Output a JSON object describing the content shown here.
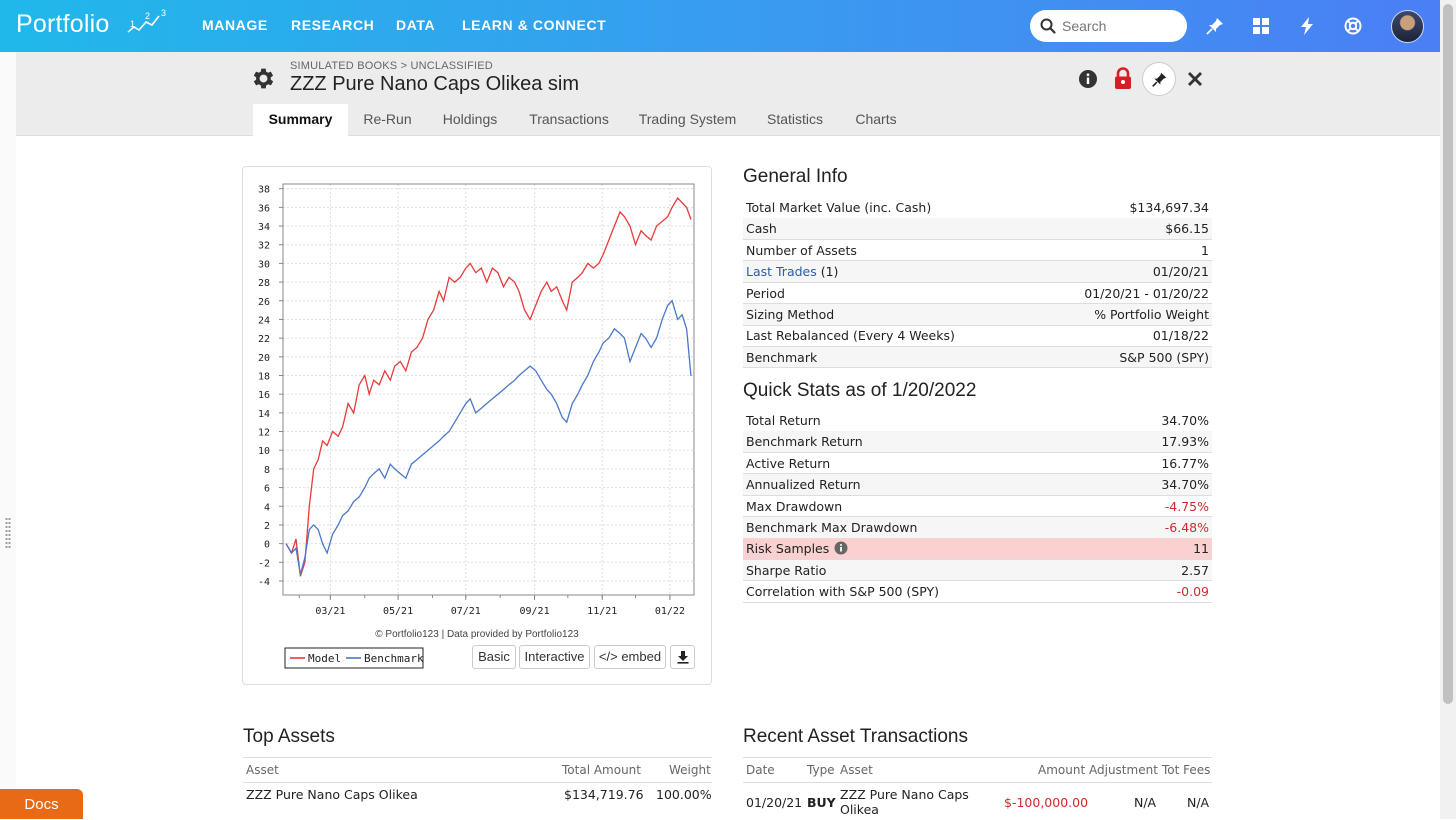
{
  "app": {
    "logo_text": "Portfolio",
    "logo_digits": [
      "1",
      "2",
      "3"
    ],
    "nav": [
      "MANAGE",
      "RESEARCH",
      "DATA",
      "LEARN & CONNECT"
    ],
    "search_placeholder": "Search",
    "brand_color": "#2aa8ee",
    "icons": [
      "search-icon",
      "pin-icon",
      "grid-icon",
      "bolt-icon",
      "help-icon",
      "avatar"
    ]
  },
  "header": {
    "breadcrumb": "SIMULATED BOOKS > UNCLASSIFIED",
    "title": "ZZZ Pure Nano Caps Olikea sim",
    "icons": [
      "gear-icon",
      "info-icon",
      "lock-icon",
      "pin-icon",
      "close-icon"
    ]
  },
  "tabs": [
    {
      "label": "Summary",
      "active": true
    },
    {
      "label": "Re-Run",
      "active": false
    },
    {
      "label": "Holdings",
      "active": false
    },
    {
      "label": "Transactions",
      "active": false
    },
    {
      "label": "Trading System",
      "active": false
    },
    {
      "label": "Statistics",
      "active": false
    },
    {
      "label": "Charts",
      "active": false
    }
  ],
  "chart": {
    "credit": "© Portfolio123 | Data provided by Portfolio123",
    "buttons": {
      "basic": "Basic",
      "interactive": "Interactive",
      "embed": "</> embed"
    },
    "legend": [
      {
        "name": "Model",
        "color": "#e83a3a"
      },
      {
        "name": "Benchmark",
        "color": "#4a78c8"
      }
    ]
  },
  "chart_data": {
    "type": "line",
    "y_ticks": [
      38,
      36,
      34,
      32,
      30,
      28,
      26,
      24,
      22,
      20,
      18,
      16,
      14,
      12,
      10,
      8,
      6,
      4,
      2,
      0,
      -2,
      -4
    ],
    "x_ticks": [
      "03/21",
      "05/21",
      "07/21",
      "09/21",
      "11/21",
      "01/22"
    ],
    "ylim": [
      -5.5,
      38.5
    ],
    "x_range": [
      "01/20/21",
      "01/20/22"
    ],
    "grid": true,
    "legend_position": "bottom-left",
    "series": [
      {
        "name": "Model",
        "color": "#e83a3a",
        "points": [
          [
            "01/20/21",
            0
          ],
          [
            "01/25/21",
            -1
          ],
          [
            "01/29/21",
            0.5
          ],
          [
            "02/02/21",
            -3.5
          ],
          [
            "02/06/21",
            -2
          ],
          [
            "02/10/21",
            4
          ],
          [
            "02/14/21",
            8
          ],
          [
            "02/18/21",
            9
          ],
          [
            "02/22/21",
            11
          ],
          [
            "02/26/21",
            10.5
          ],
          [
            "03/03/21",
            12
          ],
          [
            "03/08/21",
            11.5
          ],
          [
            "03/12/21",
            12.5
          ],
          [
            "03/17/21",
            15
          ],
          [
            "03/22/21",
            14
          ],
          [
            "03/27/21",
            17
          ],
          [
            "04/01/21",
            18
          ],
          [
            "04/05/21",
            16
          ],
          [
            "04/09/21",
            17.5
          ],
          [
            "04/14/21",
            17
          ],
          [
            "04/19/21",
            18.5
          ],
          [
            "04/24/21",
            17.5
          ],
          [
            "04/28/21",
            19
          ],
          [
            "05/03/21",
            19.5
          ],
          [
            "05/08/21",
            18.5
          ],
          [
            "05/13/21",
            20.5
          ],
          [
            "05/18/21",
            21
          ],
          [
            "05/23/21",
            22
          ],
          [
            "05/28/21",
            24
          ],
          [
            "06/02/21",
            25
          ],
          [
            "06/07/21",
            27
          ],
          [
            "06/11/21",
            26
          ],
          [
            "06/16/21",
            28.5
          ],
          [
            "06/21/21",
            28
          ],
          [
            "06/26/21",
            28.5
          ],
          [
            "07/01/21",
            29.5
          ],
          [
            "07/05/21",
            30
          ],
          [
            "07/10/21",
            29
          ],
          [
            "07/15/21",
            29.5
          ],
          [
            "07/20/21",
            28
          ],
          [
            "07/25/21",
            29.5
          ],
          [
            "07/30/21",
            29
          ],
          [
            "08/04/21",
            27.5
          ],
          [
            "08/09/21",
            28.5
          ],
          [
            "08/14/21",
            28
          ],
          [
            "08/18/21",
            27
          ],
          [
            "08/23/21",
            25
          ],
          [
            "08/28/21",
            24
          ],
          [
            "09/02/21",
            25.5
          ],
          [
            "09/07/21",
            27
          ],
          [
            "09/12/21",
            28
          ],
          [
            "09/16/21",
            27
          ],
          [
            "09/21/21",
            27.5
          ],
          [
            "09/26/21",
            26
          ],
          [
            "09/30/21",
            25
          ],
          [
            "10/05/21",
            28
          ],
          [
            "10/10/21",
            28.5
          ],
          [
            "10/14/21",
            29
          ],
          [
            "10/19/21",
            30
          ],
          [
            "10/24/21",
            29.5
          ],
          [
            "10/29/21",
            30
          ],
          [
            "11/02/21",
            31
          ],
          [
            "11/07/21",
            32.5
          ],
          [
            "11/12/21",
            34
          ],
          [
            "11/17/21",
            35.5
          ],
          [
            "11/21/21",
            35
          ],
          [
            "11/26/21",
            34
          ],
          [
            "12/01/21",
            32
          ],
          [
            "12/06/21",
            33.5
          ],
          [
            "12/10/21",
            33
          ],
          [
            "12/15/21",
            32.5
          ],
          [
            "12/20/21",
            34
          ],
          [
            "12/25/21",
            34.5
          ],
          [
            "12/30/21",
            35
          ],
          [
            "01/03/22",
            36
          ],
          [
            "01/08/22",
            37
          ],
          [
            "01/12/22",
            36.5
          ],
          [
            "01/16/22",
            36
          ],
          [
            "01/20/22",
            34.7
          ]
        ]
      },
      {
        "name": "Benchmark",
        "color": "#4a78c8",
        "points": [
          [
            "01/20/21",
            0
          ],
          [
            "01/25/21",
            -1
          ],
          [
            "01/29/21",
            -0.5
          ],
          [
            "02/02/21",
            -3.3
          ],
          [
            "02/06/21",
            -1.5
          ],
          [
            "02/10/21",
            1.5
          ],
          [
            "02/14/21",
            2
          ],
          [
            "02/18/21",
            1.5
          ],
          [
            "02/22/21",
            0
          ],
          [
            "02/26/21",
            -1
          ],
          [
            "03/03/21",
            1
          ],
          [
            "03/08/21",
            2
          ],
          [
            "03/12/21",
            3
          ],
          [
            "03/17/21",
            3.5
          ],
          [
            "03/22/21",
            4.5
          ],
          [
            "03/27/21",
            5
          ],
          [
            "04/01/21",
            6
          ],
          [
            "04/05/21",
            7
          ],
          [
            "04/09/21",
            7.5
          ],
          [
            "04/14/21",
            8
          ],
          [
            "04/19/21",
            7
          ],
          [
            "04/24/21",
            8.5
          ],
          [
            "04/28/21",
            8
          ],
          [
            "05/03/21",
            7.5
          ],
          [
            "05/08/21",
            7
          ],
          [
            "05/13/21",
            8.5
          ],
          [
            "05/18/21",
            9
          ],
          [
            "05/23/21",
            9.5
          ],
          [
            "05/28/21",
            10
          ],
          [
            "06/02/21",
            10.5
          ],
          [
            "06/07/21",
            11
          ],
          [
            "06/11/21",
            11.5
          ],
          [
            "06/16/21",
            12
          ],
          [
            "06/21/21",
            13
          ],
          [
            "06/26/21",
            14
          ],
          [
            "07/01/21",
            15
          ],
          [
            "07/05/21",
            15.5
          ],
          [
            "07/10/21",
            14
          ],
          [
            "07/15/21",
            14.5
          ],
          [
            "07/20/21",
            15
          ],
          [
            "07/25/21",
            15.5
          ],
          [
            "07/30/21",
            16
          ],
          [
            "08/04/21",
            16.5
          ],
          [
            "08/09/21",
            17
          ],
          [
            "08/14/21",
            17.5
          ],
          [
            "08/18/21",
            18
          ],
          [
            "08/23/21",
            18.5
          ],
          [
            "08/28/21",
            19
          ],
          [
            "09/02/21",
            18.5
          ],
          [
            "09/07/21",
            17.5
          ],
          [
            "09/12/21",
            16.5
          ],
          [
            "09/16/21",
            16
          ],
          [
            "09/21/21",
            15
          ],
          [
            "09/26/21",
            13.5
          ],
          [
            "09/30/21",
            13
          ],
          [
            "10/05/21",
            15
          ],
          [
            "10/10/21",
            16
          ],
          [
            "10/14/21",
            17
          ],
          [
            "10/19/21",
            18
          ],
          [
            "10/24/21",
            19.5
          ],
          [
            "10/29/21",
            20.5
          ],
          [
            "11/02/21",
            21.5
          ],
          [
            "11/07/21",
            22
          ],
          [
            "11/12/21",
            23
          ],
          [
            "11/17/21",
            22.5
          ],
          [
            "11/21/21",
            22
          ],
          [
            "11/26/21",
            19.5
          ],
          [
            "12/01/21",
            21
          ],
          [
            "12/06/21",
            22.5
          ],
          [
            "12/10/21",
            22
          ],
          [
            "12/15/21",
            21
          ],
          [
            "12/20/21",
            22
          ],
          [
            "12/25/21",
            24
          ],
          [
            "12/30/21",
            25.5
          ],
          [
            "01/03/22",
            26
          ],
          [
            "01/08/22",
            24
          ],
          [
            "01/12/22",
            24.5
          ],
          [
            "01/16/22",
            23
          ],
          [
            "01/20/22",
            17.93
          ]
        ]
      }
    ]
  },
  "general_info": {
    "title": "General Info",
    "rows": [
      {
        "label": "Total Market Value (inc. Cash)",
        "value": "$134,697.34"
      },
      {
        "label": "Cash",
        "value": "$66.15"
      },
      {
        "label": "Number of Assets",
        "value": "1"
      },
      {
        "label": "Last Trades",
        "suffix": " (1)",
        "value": "01/20/21",
        "link": true
      },
      {
        "label": "Period",
        "value": "01/20/21 - 01/20/22"
      },
      {
        "label": "Sizing Method",
        "value": "% Portfolio Weight"
      },
      {
        "label": "Last Rebalanced (Every 4 Weeks)",
        "value": "01/18/22"
      },
      {
        "label": "Benchmark",
        "value": "S&P 500 (SPY)"
      }
    ]
  },
  "quick_stats": {
    "title": "Quick Stats as of 1/20/2022",
    "rows": [
      {
        "label": "Total Return",
        "value": "34.70%",
        "negative": false
      },
      {
        "label": "Benchmark Return",
        "value": "17.93%",
        "negative": false
      },
      {
        "label": "Active Return",
        "value": "16.77%",
        "negative": false
      },
      {
        "label": "Annualized Return",
        "value": "34.70%",
        "negative": false
      },
      {
        "label": "Max Drawdown",
        "value": "-4.75%",
        "negative": true
      },
      {
        "label": "Benchmark Max Drawdown",
        "value": "-6.48%",
        "negative": true
      },
      {
        "label": "Risk Samples",
        "value": "11",
        "negative": false,
        "highlight": true,
        "info": true
      },
      {
        "label": "Sharpe Ratio",
        "value": "2.57",
        "negative": false
      },
      {
        "label": "Correlation with S&P 500 (SPY)",
        "value": "-0.09",
        "negative": true
      }
    ]
  },
  "top_assets": {
    "title": "Top Assets",
    "headers": [
      "Asset",
      "Total Amount",
      "Weight"
    ],
    "rows": [
      {
        "asset": "ZZZ Pure Nano Caps Olikea",
        "amount": "$134,719.76",
        "weight": "100.00%"
      }
    ]
  },
  "recent_transactions": {
    "title": "Recent Asset Transactions",
    "headers": [
      "Date",
      "Type",
      "Asset",
      "Amount",
      "Adjustment",
      "Tot Fees"
    ],
    "rows": [
      {
        "date": "01/20/21",
        "type": "BUY",
        "asset_line1": "ZZZ Pure Nano Caps",
        "asset_line2": "Olikea",
        "amount": "$-100,000.00",
        "adjustment": "N/A",
        "fees": "N/A"
      }
    ]
  },
  "docs_label": "Docs"
}
